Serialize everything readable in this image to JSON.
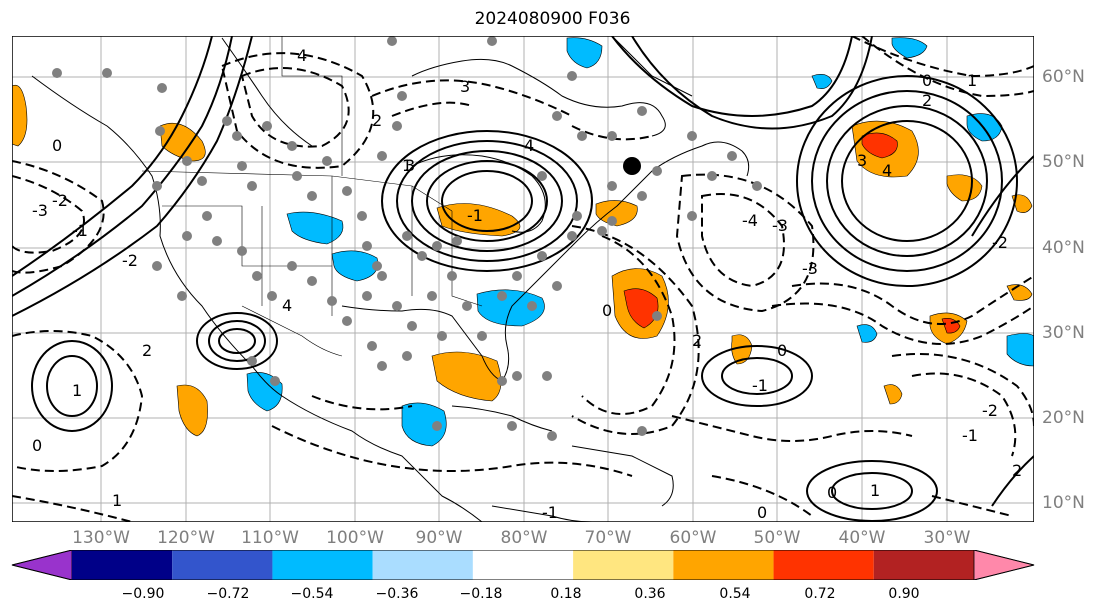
{
  "title": "2024080900 F036",
  "lon_labels": [
    "130°W",
    "120°W",
    "110°W",
    "100°W",
    "90°W",
    "80°W",
    "70°W",
    "60°W",
    "50°W",
    "40°W",
    "30°W"
  ],
  "lat_labels": [
    "60°N",
    "50°N",
    "40°N",
    "30°N",
    "20°N",
    "10°N"
  ],
  "colorbar": {
    "ticks": [
      "−0.90",
      "−0.72",
      "−0.54",
      "−0.36",
      "−0.18",
      "0.18",
      "0.36",
      "0.54",
      "0.72",
      "0.90"
    ],
    "colors": [
      "#9933cc",
      "#000088",
      "#3355cc",
      "#00bbff",
      "#aaddff",
      "#ffffff",
      "#ffe680",
      "#ffa500",
      "#ff3300",
      "#b22222",
      "#ff88aa"
    ]
  },
  "contour_labels": [
    "4",
    "4",
    "3",
    "2",
    "1",
    "0",
    "-1",
    "-2",
    "-3",
    "-2",
    "-1",
    "0",
    "1",
    "2",
    "3",
    "4",
    "-3",
    "-2",
    "0",
    "2",
    "-1",
    "0",
    "1",
    "2",
    "3",
    "4",
    "-4",
    "-3",
    "0",
    "1",
    "2",
    "-2",
    "-1",
    "0",
    "1",
    "-1",
    "0"
  ],
  "colors": {
    "axis_text": "#7f7f7f",
    "grid": "#b0b0b0"
  }
}
